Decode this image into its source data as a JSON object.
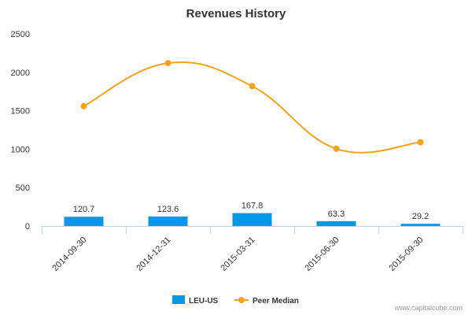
{
  "chart_data": {
    "type": "bar+line",
    "title": "Revenues History",
    "categories": [
      "2014-09-30",
      "2014-12-31",
      "2015-03-31",
      "2015-06-30",
      "2015-09-30"
    ],
    "series": [
      {
        "name": "LEU-US",
        "kind": "bar",
        "color": "#0099e6",
        "values": [
          120.7,
          123.6,
          167.8,
          63.3,
          29.2
        ],
        "labels": [
          "120.7",
          "123.6",
          "167.8",
          "63.3",
          "29.2"
        ]
      },
      {
        "name": "Peer Median",
        "kind": "line",
        "color": "#f7a21b",
        "values": [
          1560,
          2120,
          1820,
          1005,
          1090
        ]
      }
    ],
    "ylim": [
      0,
      2500
    ],
    "yticks": [
      0,
      500,
      1000,
      1500,
      2000,
      2500
    ],
    "xlabel": "",
    "ylabel": "",
    "grid": false,
    "legend_position": "bottom-center"
  },
  "credit": "www.capitalcube.com"
}
